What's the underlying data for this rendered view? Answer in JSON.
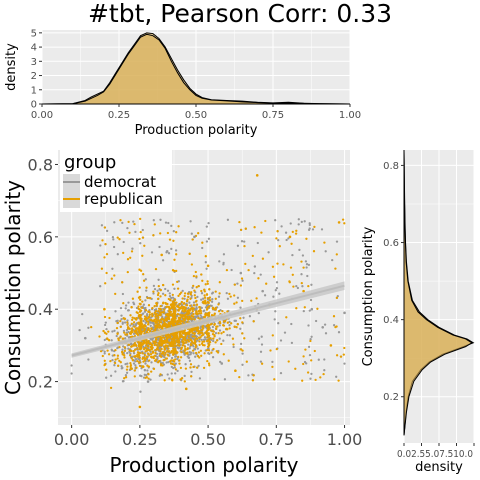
{
  "title": "#tbt, Pearson Corr: 0.33",
  "colors": {
    "democrat": "#999999",
    "republican": "#E69F00",
    "panel": "#EBEBEB",
    "grid": "#FFFFFF",
    "density_fill": "#D9AF57"
  },
  "chart_data": [
    {
      "type": "area",
      "name": "top-density",
      "xlabel": "Production polarity",
      "ylabel": "density",
      "xlim": [
        0,
        1
      ],
      "ylim": [
        0,
        5.2
      ],
      "xticks": [
        "0.00",
        "0.25",
        "0.50",
        "0.75",
        "1.00"
      ],
      "yticks": [
        "0",
        "1",
        "2",
        "3",
        "4",
        "5"
      ],
      "series": [
        {
          "name": "democrat",
          "x": [
            0.0,
            0.1,
            0.14,
            0.16,
            0.18,
            0.2,
            0.22,
            0.24,
            0.26,
            0.28,
            0.3,
            0.32,
            0.34,
            0.36,
            0.38,
            0.4,
            0.42,
            0.44,
            0.46,
            0.48,
            0.5,
            0.52,
            0.55,
            0.6,
            0.65,
            0.7,
            0.75,
            0.8,
            0.85,
            0.9,
            1.0
          ],
          "y": [
            0.0,
            0.03,
            0.25,
            0.5,
            0.7,
            0.9,
            1.5,
            2.2,
            2.9,
            3.6,
            4.2,
            4.8,
            5.0,
            4.95,
            4.6,
            4.0,
            3.2,
            2.4,
            1.7,
            1.1,
            0.7,
            0.45,
            0.3,
            0.25,
            0.2,
            0.12,
            0.08,
            0.12,
            0.05,
            0.03,
            0.0
          ]
        },
        {
          "name": "republican",
          "x": [
            0.0,
            0.1,
            0.14,
            0.16,
            0.18,
            0.2,
            0.22,
            0.24,
            0.26,
            0.28,
            0.3,
            0.32,
            0.34,
            0.36,
            0.38,
            0.4,
            0.42,
            0.44,
            0.46,
            0.48,
            0.5,
            0.52,
            0.55,
            0.6,
            0.65,
            0.7,
            0.75,
            0.8,
            0.85,
            0.9,
            1.0
          ],
          "y": [
            0.0,
            0.02,
            0.2,
            0.4,
            0.6,
            0.85,
            1.4,
            2.1,
            2.8,
            3.5,
            4.1,
            4.7,
            4.9,
            4.8,
            4.5,
            3.9,
            3.0,
            2.2,
            1.5,
            1.0,
            0.6,
            0.4,
            0.28,
            0.22,
            0.15,
            0.1,
            0.06,
            0.08,
            0.04,
            0.02,
            0.0
          ]
        }
      ]
    },
    {
      "type": "scatter",
      "name": "main-scatter",
      "xlabel": "Production polarity",
      "ylabel": "Consumption polarity",
      "xlim": [
        -0.05,
        1.02
      ],
      "ylim": [
        0.08,
        0.84
      ],
      "xticks": [
        "0.00",
        "0.25",
        "0.50",
        "0.75",
        "1.00"
      ],
      "yticks": [
        "0.2",
        "0.4",
        "0.6",
        "0.8"
      ],
      "legend": {
        "title": "group",
        "position": "top-left",
        "entries": [
          "democrat",
          "republican"
        ]
      },
      "trend": {
        "x": [
          0.0,
          1.0
        ],
        "y": [
          0.272,
          0.465
        ]
      },
      "sample_points": {
        "democrat": [
          [
            0.17,
            0.82
          ],
          [
            0.2,
            0.82
          ],
          [
            0.35,
            0.56
          ],
          [
            0.45,
            0.6
          ],
          [
            0.62,
            0.5
          ],
          [
            0.7,
            0.45
          ],
          [
            0.88,
            0.4
          ],
          [
            0.92,
            0.35
          ],
          [
            1.0,
            0.39
          ],
          [
            0.05,
            0.32
          ],
          [
            0.28,
            0.2
          ],
          [
            0.55,
            0.25
          ]
        ],
        "republican": [
          [
            0.68,
            0.77
          ],
          [
            0.98,
            0.64
          ],
          [
            0.33,
            0.55
          ],
          [
            0.5,
            0.52
          ],
          [
            0.8,
            0.6
          ],
          [
            0.85,
            0.45
          ],
          [
            0.95,
            0.3
          ],
          [
            0.6,
            0.23
          ],
          [
            0.25,
            0.13
          ],
          [
            0.42,
            0.18
          ],
          [
            0.12,
            0.4
          ]
        ]
      }
    },
    {
      "type": "area",
      "name": "right-density",
      "xlabel": "density",
      "ylabel": "Consumption polarity",
      "xlim": [
        0,
        10
      ],
      "ylim": [
        0.08,
        0.84
      ],
      "xticks": [
        "0.0",
        "2.5",
        "5.0",
        "7.5",
        "10.0"
      ],
      "xtick_text": "0.02.55.07.510.0",
      "yticks": [
        "0.2",
        "0.4",
        "0.6",
        "0.8"
      ],
      "series": [
        {
          "name": "democrat",
          "y": [
            0.1,
            0.16,
            0.2,
            0.24,
            0.27,
            0.29,
            0.31,
            0.33,
            0.34,
            0.35,
            0.36,
            0.38,
            0.4,
            0.42,
            0.45,
            0.5,
            0.55,
            0.6,
            0.65,
            0.7,
            0.75,
            0.8,
            0.84
          ],
          "x": [
            0.0,
            0.3,
            0.6,
            1.2,
            2.4,
            3.6,
            5.5,
            8.5,
            9.9,
            9.0,
            7.2,
            5.0,
            3.4,
            2.2,
            1.2,
            0.6,
            0.35,
            0.22,
            0.15,
            0.1,
            0.06,
            0.03,
            0.0
          ]
        },
        {
          "name": "republican",
          "y": [
            0.1,
            0.16,
            0.2,
            0.24,
            0.27,
            0.29,
            0.31,
            0.33,
            0.34,
            0.35,
            0.36,
            0.38,
            0.4,
            0.42,
            0.45,
            0.5,
            0.55,
            0.6,
            0.65,
            0.7,
            0.75,
            0.8,
            0.84
          ],
          "x": [
            0.0,
            0.35,
            0.7,
            1.4,
            2.6,
            3.8,
            5.8,
            8.8,
            9.7,
            8.8,
            7.0,
            4.8,
            3.2,
            2.0,
            1.1,
            0.55,
            0.3,
            0.2,
            0.12,
            0.08,
            0.05,
            0.02,
            0.0
          ]
        }
      ]
    }
  ]
}
